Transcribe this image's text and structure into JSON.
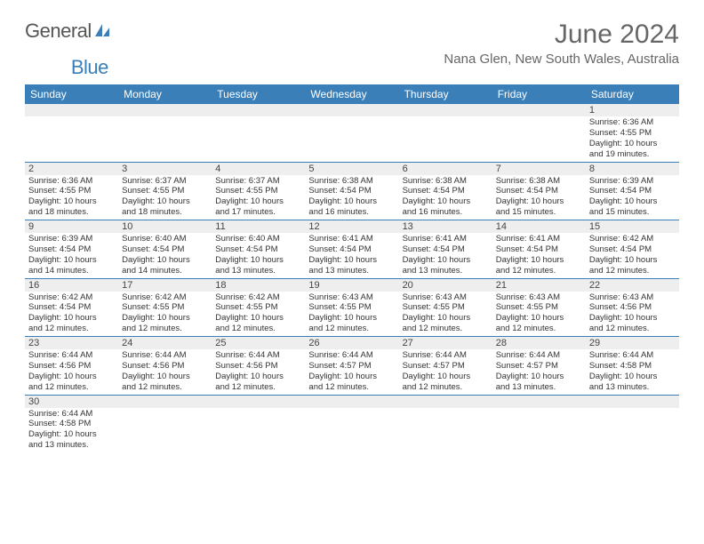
{
  "brand": {
    "part1": "General",
    "part2": "Blue"
  },
  "title": "June 2024",
  "location": "Nana Glen, New South Wales, Australia",
  "colors": {
    "accent": "#3a7fb8",
    "header_bg": "#3a7fb8",
    "daynum_bg": "#eeeeee"
  },
  "day_names": [
    "Sunday",
    "Monday",
    "Tuesday",
    "Wednesday",
    "Thursday",
    "Friday",
    "Saturday"
  ],
  "weeks": [
    [
      {
        "n": "",
        "sr": "",
        "ss": "",
        "d1": "",
        "d2": ""
      },
      {
        "n": "",
        "sr": "",
        "ss": "",
        "d1": "",
        "d2": ""
      },
      {
        "n": "",
        "sr": "",
        "ss": "",
        "d1": "",
        "d2": ""
      },
      {
        "n": "",
        "sr": "",
        "ss": "",
        "d1": "",
        "d2": ""
      },
      {
        "n": "",
        "sr": "",
        "ss": "",
        "d1": "",
        "d2": ""
      },
      {
        "n": "",
        "sr": "",
        "ss": "",
        "d1": "",
        "d2": ""
      },
      {
        "n": "1",
        "sr": "Sunrise: 6:36 AM",
        "ss": "Sunset: 4:55 PM",
        "d1": "Daylight: 10 hours",
        "d2": "and 19 minutes."
      }
    ],
    [
      {
        "n": "2",
        "sr": "Sunrise: 6:36 AM",
        "ss": "Sunset: 4:55 PM",
        "d1": "Daylight: 10 hours",
        "d2": "and 18 minutes."
      },
      {
        "n": "3",
        "sr": "Sunrise: 6:37 AM",
        "ss": "Sunset: 4:55 PM",
        "d1": "Daylight: 10 hours",
        "d2": "and 18 minutes."
      },
      {
        "n": "4",
        "sr": "Sunrise: 6:37 AM",
        "ss": "Sunset: 4:55 PM",
        "d1": "Daylight: 10 hours",
        "d2": "and 17 minutes."
      },
      {
        "n": "5",
        "sr": "Sunrise: 6:38 AM",
        "ss": "Sunset: 4:54 PM",
        "d1": "Daylight: 10 hours",
        "d2": "and 16 minutes."
      },
      {
        "n": "6",
        "sr": "Sunrise: 6:38 AM",
        "ss": "Sunset: 4:54 PM",
        "d1": "Daylight: 10 hours",
        "d2": "and 16 minutes."
      },
      {
        "n": "7",
        "sr": "Sunrise: 6:38 AM",
        "ss": "Sunset: 4:54 PM",
        "d1": "Daylight: 10 hours",
        "d2": "and 15 minutes."
      },
      {
        "n": "8",
        "sr": "Sunrise: 6:39 AM",
        "ss": "Sunset: 4:54 PM",
        "d1": "Daylight: 10 hours",
        "d2": "and 15 minutes."
      }
    ],
    [
      {
        "n": "9",
        "sr": "Sunrise: 6:39 AM",
        "ss": "Sunset: 4:54 PM",
        "d1": "Daylight: 10 hours",
        "d2": "and 14 minutes."
      },
      {
        "n": "10",
        "sr": "Sunrise: 6:40 AM",
        "ss": "Sunset: 4:54 PM",
        "d1": "Daylight: 10 hours",
        "d2": "and 14 minutes."
      },
      {
        "n": "11",
        "sr": "Sunrise: 6:40 AM",
        "ss": "Sunset: 4:54 PM",
        "d1": "Daylight: 10 hours",
        "d2": "and 13 minutes."
      },
      {
        "n": "12",
        "sr": "Sunrise: 6:41 AM",
        "ss": "Sunset: 4:54 PM",
        "d1": "Daylight: 10 hours",
        "d2": "and 13 minutes."
      },
      {
        "n": "13",
        "sr": "Sunrise: 6:41 AM",
        "ss": "Sunset: 4:54 PM",
        "d1": "Daylight: 10 hours",
        "d2": "and 13 minutes."
      },
      {
        "n": "14",
        "sr": "Sunrise: 6:41 AM",
        "ss": "Sunset: 4:54 PM",
        "d1": "Daylight: 10 hours",
        "d2": "and 12 minutes."
      },
      {
        "n": "15",
        "sr": "Sunrise: 6:42 AM",
        "ss": "Sunset: 4:54 PM",
        "d1": "Daylight: 10 hours",
        "d2": "and 12 minutes."
      }
    ],
    [
      {
        "n": "16",
        "sr": "Sunrise: 6:42 AM",
        "ss": "Sunset: 4:54 PM",
        "d1": "Daylight: 10 hours",
        "d2": "and 12 minutes."
      },
      {
        "n": "17",
        "sr": "Sunrise: 6:42 AM",
        "ss": "Sunset: 4:55 PM",
        "d1": "Daylight: 10 hours",
        "d2": "and 12 minutes."
      },
      {
        "n": "18",
        "sr": "Sunrise: 6:42 AM",
        "ss": "Sunset: 4:55 PM",
        "d1": "Daylight: 10 hours",
        "d2": "and 12 minutes."
      },
      {
        "n": "19",
        "sr": "Sunrise: 6:43 AM",
        "ss": "Sunset: 4:55 PM",
        "d1": "Daylight: 10 hours",
        "d2": "and 12 minutes."
      },
      {
        "n": "20",
        "sr": "Sunrise: 6:43 AM",
        "ss": "Sunset: 4:55 PM",
        "d1": "Daylight: 10 hours",
        "d2": "and 12 minutes."
      },
      {
        "n": "21",
        "sr": "Sunrise: 6:43 AM",
        "ss": "Sunset: 4:55 PM",
        "d1": "Daylight: 10 hours",
        "d2": "and 12 minutes."
      },
      {
        "n": "22",
        "sr": "Sunrise: 6:43 AM",
        "ss": "Sunset: 4:56 PM",
        "d1": "Daylight: 10 hours",
        "d2": "and 12 minutes."
      }
    ],
    [
      {
        "n": "23",
        "sr": "Sunrise: 6:44 AM",
        "ss": "Sunset: 4:56 PM",
        "d1": "Daylight: 10 hours",
        "d2": "and 12 minutes."
      },
      {
        "n": "24",
        "sr": "Sunrise: 6:44 AM",
        "ss": "Sunset: 4:56 PM",
        "d1": "Daylight: 10 hours",
        "d2": "and 12 minutes."
      },
      {
        "n": "25",
        "sr": "Sunrise: 6:44 AM",
        "ss": "Sunset: 4:56 PM",
        "d1": "Daylight: 10 hours",
        "d2": "and 12 minutes."
      },
      {
        "n": "26",
        "sr": "Sunrise: 6:44 AM",
        "ss": "Sunset: 4:57 PM",
        "d1": "Daylight: 10 hours",
        "d2": "and 12 minutes."
      },
      {
        "n": "27",
        "sr": "Sunrise: 6:44 AM",
        "ss": "Sunset: 4:57 PM",
        "d1": "Daylight: 10 hours",
        "d2": "and 12 minutes."
      },
      {
        "n": "28",
        "sr": "Sunrise: 6:44 AM",
        "ss": "Sunset: 4:57 PM",
        "d1": "Daylight: 10 hours",
        "d2": "and 13 minutes."
      },
      {
        "n": "29",
        "sr": "Sunrise: 6:44 AM",
        "ss": "Sunset: 4:58 PM",
        "d1": "Daylight: 10 hours",
        "d2": "and 13 minutes."
      }
    ],
    [
      {
        "n": "30",
        "sr": "Sunrise: 6:44 AM",
        "ss": "Sunset: 4:58 PM",
        "d1": "Daylight: 10 hours",
        "d2": "and 13 minutes."
      },
      {
        "n": "",
        "sr": "",
        "ss": "",
        "d1": "",
        "d2": ""
      },
      {
        "n": "",
        "sr": "",
        "ss": "",
        "d1": "",
        "d2": ""
      },
      {
        "n": "",
        "sr": "",
        "ss": "",
        "d1": "",
        "d2": ""
      },
      {
        "n": "",
        "sr": "",
        "ss": "",
        "d1": "",
        "d2": ""
      },
      {
        "n": "",
        "sr": "",
        "ss": "",
        "d1": "",
        "d2": ""
      },
      {
        "n": "",
        "sr": "",
        "ss": "",
        "d1": "",
        "d2": ""
      }
    ]
  ]
}
